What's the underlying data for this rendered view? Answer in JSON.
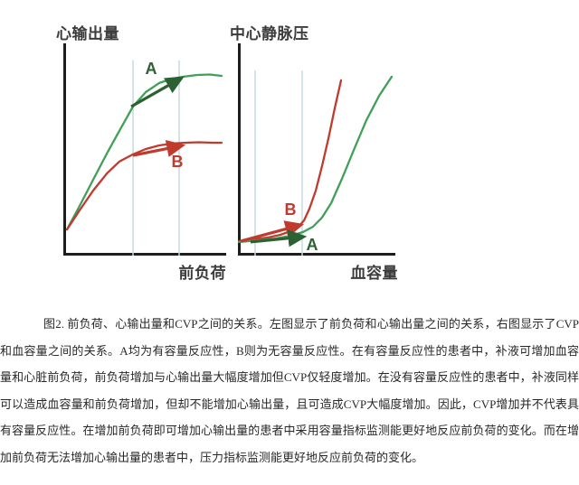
{
  "figure": {
    "label": "图2.",
    "caption": "图2. 前负荷、心输出量和CVP之间的关系。左图显示了前负荷和心输出量之间的关系，右图显示了CVP和血容量之间的关系。A均为有容量反应性，B则为无容量反应性。在有容量反应性的患者中，补液可增加血容量和心脏前负荷，前负荷增加与心输出量大幅度增加但CVP仅轻度增加。在没有容量反应性的患者中，补液同样可以造成血容量和前负荷增加，但却不能增加心输出量，且可造成CVP大幅度增加。因此，CVP增加并不代表具有容量反应性。在增加前负荷即可增加心输出量的患者中采用容量指标监测能更好地反应前负荷的变化。而在增加前负荷无法增加心输出量的患者中，压力指标监测能更好地反应前负荷的变化。"
  },
  "colors": {
    "axis": "#1d1d1d",
    "green": "#3fa058",
    "dark_green": "#2d6134",
    "red": "#c13a2e",
    "guide_blue": "#c4dbe2",
    "title_text": "#3c3c3c",
    "caption_text": "#282828"
  },
  "chart_data": [
    {
      "type": "line",
      "title": "心输出量",
      "xlabel": "前负荷",
      "ylabel": "心输出量",
      "xlim": [
        0,
        1
      ],
      "ylim": [
        0,
        1
      ],
      "grid": false,
      "legend": "none",
      "note": "qualitative axes, no numeric ticks; values normalized 0-1",
      "guide_top": 0.92,
      "guides_x": [
        0.428,
        0.711
      ],
      "series": [
        {
          "name": "A",
          "color": "#3fa058",
          "points": [
            [
              0.022,
              0.123
            ],
            [
              0.1,
              0.234
            ],
            [
              0.183,
              0.357
            ],
            [
              0.267,
              0.481
            ],
            [
              0.35,
              0.596
            ],
            [
              0.428,
              0.702
            ],
            [
              0.506,
              0.77
            ],
            [
              0.589,
              0.813
            ],
            [
              0.672,
              0.834
            ],
            [
              0.739,
              0.843
            ],
            [
              0.822,
              0.851
            ],
            [
              0.9,
              0.853
            ],
            [
              0.972,
              0.847
            ]
          ]
        },
        {
          "name": "B",
          "color": "#c13a2e",
          "points": [
            [
              0.022,
              0.123
            ],
            [
              0.1,
              0.213
            ],
            [
              0.183,
              0.306
            ],
            [
              0.267,
              0.387
            ],
            [
              0.344,
              0.443
            ],
            [
              0.428,
              0.477
            ],
            [
              0.506,
              0.502
            ],
            [
              0.589,
              0.519
            ],
            [
              0.672,
              0.528
            ],
            [
              0.75,
              0.532
            ],
            [
              0.833,
              0.534
            ],
            [
              0.917,
              0.532
            ],
            [
              0.972,
              0.532
            ]
          ]
        }
      ],
      "arrows": [
        {
          "name": "arrow-A",
          "color": "#2d6134",
          "from": [
            0.417,
            0.702
          ],
          "to": [
            0.728,
            0.838
          ]
        },
        {
          "name": "arrow-B",
          "color": "#c13a2e",
          "from": [
            0.428,
            0.472
          ],
          "to": [
            0.733,
            0.519
          ]
        }
      ],
      "labels": [
        {
          "text": "A",
          "color": "#2d6134",
          "pos": [
            0.539,
            0.855
          ]
        },
        {
          "text": "B",
          "color": "#c13a2e",
          "pos": [
            0.7,
            0.417
          ]
        }
      ]
    },
    {
      "type": "line",
      "title": "中心静脉压",
      "xlabel": "血容量",
      "ylabel": "中心静脉压",
      "xlim": [
        0,
        1
      ],
      "ylim": [
        0,
        1
      ],
      "grid": false,
      "legend": "none",
      "note": "qualitative axes, no numeric ticks; values normalized 0-1",
      "guide_top": 0.872,
      "guides_x": [
        0.109,
        0.408
      ],
      "series": [
        {
          "name": "B",
          "color": "#c13a2e",
          "points": [
            [
              0.006,
              0.068
            ],
            [
              0.103,
              0.077
            ],
            [
              0.19,
              0.085
            ],
            [
              0.27,
              0.098
            ],
            [
              0.333,
              0.115
            ],
            [
              0.385,
              0.136
            ],
            [
              0.42,
              0.166
            ],
            [
              0.454,
              0.221
            ],
            [
              0.494,
              0.306
            ],
            [
              0.534,
              0.421
            ],
            [
              0.575,
              0.553
            ],
            [
              0.615,
              0.694
            ],
            [
              0.655,
              0.826
            ]
          ]
        },
        {
          "name": "A",
          "color": "#3fa058",
          "points": [
            [
              0.006,
              0.064
            ],
            [
              0.126,
              0.072
            ],
            [
              0.241,
              0.081
            ],
            [
              0.339,
              0.094
            ],
            [
              0.414,
              0.111
            ],
            [
              0.477,
              0.136
            ],
            [
              0.534,
              0.179
            ],
            [
              0.592,
              0.247
            ],
            [
              0.661,
              0.362
            ],
            [
              0.736,
              0.498
            ],
            [
              0.816,
              0.638
            ],
            [
              0.897,
              0.753
            ],
            [
              0.977,
              0.843
            ]
          ]
        }
      ],
      "arrows": [
        {
          "name": "arrow-B",
          "color": "#c13a2e",
          "from": [
            0.017,
            0.068
          ],
          "to": [
            0.402,
            0.145
          ]
        },
        {
          "name": "arrow-A",
          "color": "#2d6134",
          "from": [
            0.08,
            0.064
          ],
          "to": [
            0.42,
            0.089
          ]
        }
      ],
      "labels": [
        {
          "text": "B",
          "color": "#c13a2e",
          "pos": [
            0.333,
            0.191
          ]
        },
        {
          "text": "A",
          "color": "#2d6134",
          "pos": [
            0.471,
            0.026
          ]
        }
      ]
    }
  ]
}
